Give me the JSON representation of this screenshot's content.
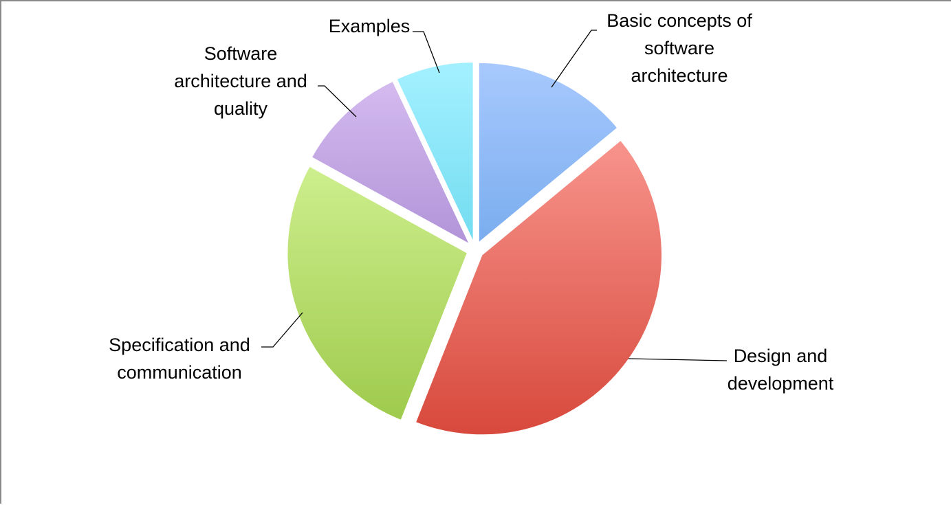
{
  "chart_data": {
    "type": "pie",
    "exploded": true,
    "legend": "none",
    "slices": [
      {
        "label": "Basic concepts of software architecture",
        "label_lines": [
          "Basic concepts of",
          "software",
          "architecture"
        ],
        "value": 14,
        "color_light": "#a6c8fd",
        "color_dark": "#4a8fde"
      },
      {
        "label": "Design and development",
        "label_lines": [
          "Design and",
          "development"
        ],
        "value": 42,
        "color_light": "#ffa6a0",
        "color_dark": "#d84a3d"
      },
      {
        "label": "Specification and communication",
        "label_lines": [
          "Specification and",
          "communication"
        ],
        "value": 27,
        "color_light": "#e0fca6",
        "color_dark": "#9cc94a"
      },
      {
        "label": "Software architecture and quality",
        "label_lines": [
          "Software",
          "architecture and",
          "quality"
        ],
        "value": 10,
        "color_light": "#d6bdf0",
        "color_dark": "#8a68bf"
      },
      {
        "label": "Examples",
        "label_lines": [
          "Examples"
        ],
        "value": 7,
        "color_light": "#a2f0ff",
        "color_dark": "#3ec6e0"
      }
    ]
  }
}
